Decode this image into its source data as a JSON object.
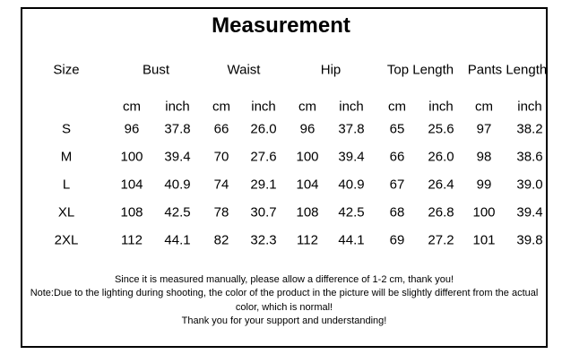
{
  "title": "Measurement",
  "table": {
    "size_header": "Size",
    "groups": [
      "Bust",
      "Waist",
      "Hip",
      "Top Length",
      "Pants Length"
    ],
    "units": [
      "cm",
      "inch",
      "cm",
      "inch",
      "cm",
      "inch",
      "cm",
      "inch",
      "cm",
      "inch"
    ],
    "rows": [
      {
        "size": "S",
        "values": [
          "96",
          "37.8",
          "66",
          "26.0",
          "96",
          "37.8",
          "65",
          "25.6",
          "97",
          "38.2"
        ]
      },
      {
        "size": "M",
        "values": [
          "100",
          "39.4",
          "70",
          "27.6",
          "100",
          "39.4",
          "66",
          "26.0",
          "98",
          "38.6"
        ]
      },
      {
        "size": "L",
        "values": [
          "104",
          "40.9",
          "74",
          "29.1",
          "104",
          "40.9",
          "67",
          "26.4",
          "99",
          "39.0"
        ]
      },
      {
        "size": "XL",
        "values": [
          "108",
          "42.5",
          "78",
          "30.7",
          "108",
          "42.5",
          "68",
          "26.8",
          "100",
          "39.4"
        ]
      },
      {
        "size": "2XL",
        "values": [
          "112",
          "44.1",
          "82",
          "32.3",
          "112",
          "44.1",
          "69",
          "27.2",
          "101",
          "39.8"
        ]
      }
    ]
  },
  "notes": [
    "Since it is measured manually, please allow a difference of 1-2 cm, thank you!",
    "Note:Due to the lighting during shooting, the color of the product in the picture will be slightly different from the actual color, which is normal!",
    "Thank you for your support and understanding!"
  ]
}
